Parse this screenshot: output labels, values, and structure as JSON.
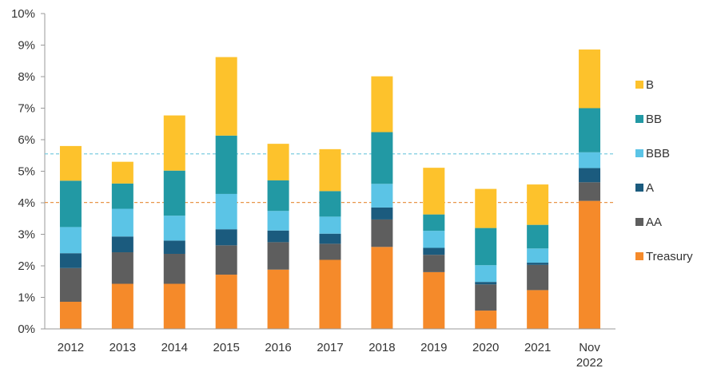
{
  "chart_data": {
    "type": "bar",
    "stacked": true,
    "categories": [
      "2012",
      "2013",
      "2014",
      "2015",
      "2016",
      "2017",
      "2018",
      "2019",
      "2020",
      "2021",
      "Nov 2022"
    ],
    "series": [
      {
        "name": "Treasury",
        "color": "#F58A2A",
        "values": [
          0.86,
          1.43,
          1.43,
          1.72,
          1.88,
          2.19,
          2.6,
          1.8,
          0.58,
          1.23,
          4.06
        ]
      },
      {
        "name": "AA",
        "color": "#5E5E5E",
        "values": [
          1.07,
          1.0,
          0.95,
          0.93,
          0.87,
          0.51,
          0.87,
          0.55,
          0.83,
          0.8,
          0.59
        ]
      },
      {
        "name": "A",
        "color": "#1B5B7E",
        "values": [
          0.47,
          0.5,
          0.42,
          0.51,
          0.37,
          0.32,
          0.38,
          0.22,
          0.08,
          0.07,
          0.45
        ]
      },
      {
        "name": "BBB",
        "color": "#5BC4E6",
        "values": [
          0.83,
          0.88,
          0.79,
          1.12,
          0.62,
          0.54,
          0.75,
          0.54,
          0.53,
          0.45,
          0.5
        ]
      },
      {
        "name": "BB",
        "color": "#2299A4",
        "values": [
          1.47,
          0.8,
          1.43,
          1.85,
          0.97,
          0.81,
          1.64,
          0.52,
          1.18,
          0.75,
          1.4
        ]
      },
      {
        "name": "B",
        "color": "#FDC22C",
        "values": [
          1.1,
          0.69,
          1.75,
          2.49,
          1.16,
          1.33,
          1.77,
          1.48,
          1.24,
          1.28,
          1.86
        ]
      }
    ],
    "reference_lines": [
      {
        "value": 5.55,
        "color": "#7CCBE0"
      },
      {
        "value": 4.01,
        "color": "#E8964A"
      }
    ],
    "xlabel": "",
    "ylabel": "",
    "ylim": [
      0,
      10
    ],
    "yticks": [
      "0%",
      "1%",
      "2%",
      "3%",
      "4%",
      "5%",
      "6%",
      "7%",
      "8%",
      "9%",
      "10%"
    ],
    "grid": false,
    "legend": {
      "placement": "right",
      "entries": [
        "B",
        "BB",
        "BBB",
        "A",
        "AA",
        "Treasury"
      ]
    }
  }
}
